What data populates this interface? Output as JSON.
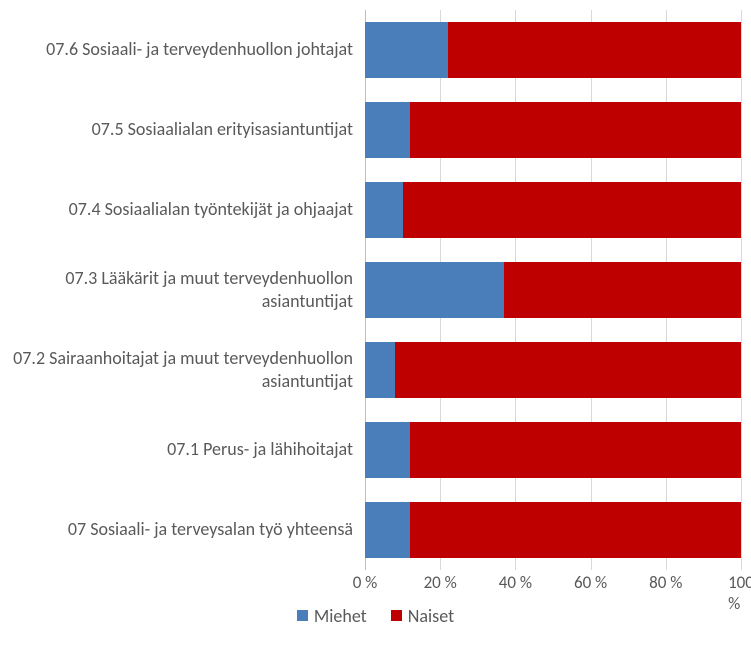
{
  "chart": {
    "type": "stacked-bar-horizontal",
    "background_color": "#ffffff",
    "grid_color": "#d9d9d9",
    "axis_line_color": "#bfbfbf",
    "text_color": "#595959",
    "label_fontsize": 18,
    "tick_fontsize": 17,
    "bar_height_ratio": 0.7,
    "xlim": [
      0,
      100
    ],
    "xtick_step": 20,
    "xticks": [
      "0 %",
      "20 %",
      "40 %",
      "60 %",
      "80 %",
      "100 %"
    ],
    "xtick_values": [
      0,
      20,
      40,
      60,
      80,
      100
    ],
    "series": [
      {
        "name": "Miehet",
        "color": "#4a7ebb"
      },
      {
        "name": "Naiset",
        "color": "#be0000"
      }
    ],
    "categories": [
      {
        "label": "07.6 Sosiaali- ja terveydenhuollon johtajat",
        "values": [
          22,
          78
        ]
      },
      {
        "label": "07.5 Sosiaalialan erityisasiantuntijat",
        "values": [
          12,
          88
        ]
      },
      {
        "label": "07.4 Sosiaalialan työntekijät ja ohjaajat",
        "values": [
          10,
          90
        ]
      },
      {
        "label": "07.3 Lääkärit ja muut terveydenhuollon asiantuntijat",
        "values": [
          37,
          63
        ]
      },
      {
        "label": "07.2 Sairaanhoitajat ja muut terveydenhuollon asiantuntijat",
        "values": [
          8,
          92
        ]
      },
      {
        "label": "07.1 Perus- ja lähihoitajat",
        "values": [
          12,
          88
        ]
      },
      {
        "label": "07 Sosiaali- ja terveysalan työ yhteensä",
        "values": [
          12,
          88
        ]
      }
    ]
  }
}
